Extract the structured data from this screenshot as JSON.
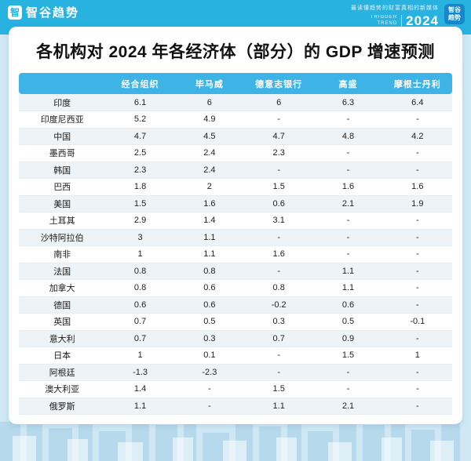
{
  "banner": {
    "logo_glyph": "智",
    "logo_text": "智谷趋势",
    "tagline": "最读懂趋势的财富真相的新媒体",
    "trigger": "TRIGGER",
    "trend": "TREND",
    "year": "2024",
    "badge_line1": "智谷",
    "badge_line2": "趋势"
  },
  "title": "各机构对 2024 年各经济体（部分）的 GDP 增速预测",
  "chart_data": {
    "type": "table",
    "title": "各机构对 2024 年各经济体（部分）的 GDP 增速预测",
    "row_header": "",
    "columns": [
      "经合组织",
      "毕马威",
      "德意志银行",
      "高盛",
      "摩根士丹利"
    ],
    "missing_marker": "-",
    "rows": [
      {
        "country": "印度",
        "values": [
          "6.1",
          "6",
          "6",
          "6.3",
          "6.4"
        ]
      },
      {
        "country": "印度尼西亚",
        "values": [
          "5.2",
          "4.9",
          "-",
          "-",
          "-"
        ]
      },
      {
        "country": "中国",
        "values": [
          "4.7",
          "4.5",
          "4.7",
          "4.8",
          "4.2"
        ]
      },
      {
        "country": "墨西哥",
        "values": [
          "2.5",
          "2.4",
          "2.3",
          "-",
          "-"
        ]
      },
      {
        "country": "韩国",
        "values": [
          "2.3",
          "2.4",
          "-",
          "-",
          "-"
        ]
      },
      {
        "country": "巴西",
        "values": [
          "1.8",
          "2",
          "1.5",
          "1.6",
          "1.6"
        ]
      },
      {
        "country": "美国",
        "values": [
          "1.5",
          "1.6",
          "0.6",
          "2.1",
          "1.9"
        ]
      },
      {
        "country": "土耳其",
        "values": [
          "2.9",
          "1.4",
          "3.1",
          "-",
          "-"
        ]
      },
      {
        "country": "沙特阿拉伯",
        "values": [
          "3",
          "1.1",
          "-",
          "-",
          "-"
        ]
      },
      {
        "country": "南非",
        "values": [
          "1",
          "1.1",
          "1.6",
          "-",
          "-"
        ]
      },
      {
        "country": "法国",
        "values": [
          "0.8",
          "0.8",
          "-",
          "1.1",
          "-"
        ]
      },
      {
        "country": "加拿大",
        "values": [
          "0.8",
          "0.6",
          "0.8",
          "1.1",
          "-"
        ]
      },
      {
        "country": "德国",
        "values": [
          "0.6",
          "0.6",
          "-0.2",
          "0.6",
          "-"
        ]
      },
      {
        "country": "英国",
        "values": [
          "0.7",
          "0.5",
          "0.3",
          "0.5",
          "-0.1"
        ]
      },
      {
        "country": "意大利",
        "values": [
          "0.7",
          "0.3",
          "0.7",
          "0.9",
          "-"
        ]
      },
      {
        "country": "日本",
        "values": [
          "1",
          "0.1",
          "-",
          "1.5",
          "1"
        ]
      },
      {
        "country": "阿根廷",
        "values": [
          "-1.3",
          "-2.3",
          "-",
          "-",
          "-"
        ]
      },
      {
        "country": "澳大利亚",
        "values": [
          "1.4",
          "-",
          "1.5",
          "-",
          "-"
        ]
      },
      {
        "country": "俄罗斯",
        "values": [
          "1.1",
          "-",
          "1.1",
          "2.1",
          "-"
        ]
      }
    ]
  },
  "colors": {
    "banner": "#27b2e0",
    "table_header": "#3eb3e5",
    "background": "#cfe8f4",
    "stripe": "#eef3f7",
    "badge": "#1787c9"
  }
}
